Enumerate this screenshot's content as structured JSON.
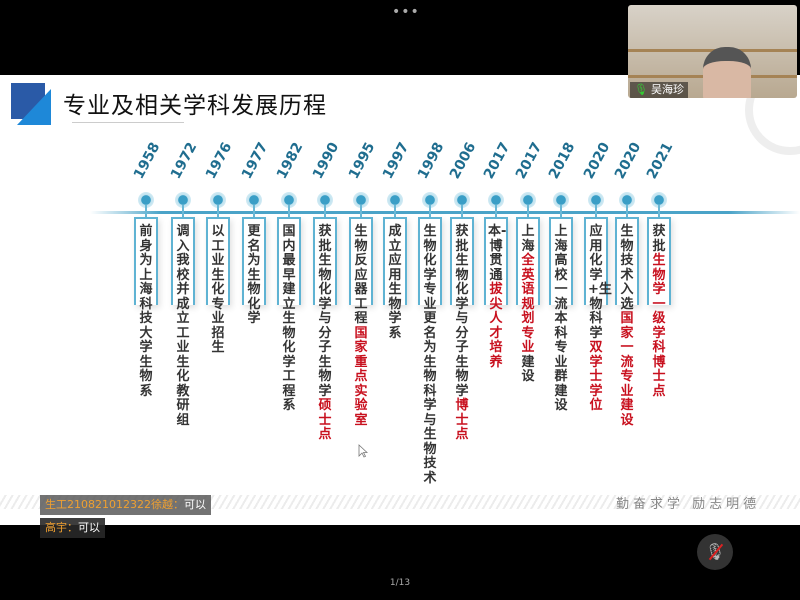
{
  "slide": {
    "title": "专业及相关学科发展历程",
    "motto": "勤奋求学  励志明德",
    "colors": {
      "accent": "#1f6d8f",
      "highlight": "#c8101e",
      "logo": "#2a5aa7"
    },
    "timeline": [
      {
        "year": "1958",
        "text": [
          {
            "t": "前身为上海科技大学生物系"
          }
        ]
      },
      {
        "year": "1972",
        "text": [
          {
            "t": "调入我校并成立工业生化教研组"
          }
        ]
      },
      {
        "year": "1976",
        "text": [
          {
            "t": "以工业生化专业招生"
          }
        ]
      },
      {
        "year": "1977",
        "text": [
          {
            "t": "更名为生物化学"
          }
        ]
      },
      {
        "year": "1982",
        "text": [
          {
            "t": "国内最早建立生物化学工程系"
          }
        ]
      },
      {
        "year": "1990",
        "text": [
          {
            "t": "获批生物化学与分子生物学"
          },
          {
            "t": "硕士点",
            "red": true
          }
        ]
      },
      {
        "year": "1995",
        "text": [
          {
            "t": "生物反应器工程"
          },
          {
            "t": "国家重点实验室",
            "red": true
          }
        ]
      },
      {
        "year": "1997",
        "text": [
          {
            "t": "成立应用生物学系"
          }
        ]
      },
      {
        "year": "1998",
        "text": [
          {
            "t": "生物化学专业更名为生物科学与生物技术"
          }
        ]
      },
      {
        "year": "2006",
        "text": [
          {
            "t": "获批生物化学与分子生物学"
          },
          {
            "t": "博士点",
            "red": true
          }
        ]
      },
      {
        "year": "2017",
        "text": [
          {
            "t": "本-博贯通"
          },
          {
            "t": "拔尖人才培养",
            "red": true
          }
        ]
      },
      {
        "year": "2017",
        "text": [
          {
            "t": "上海"
          },
          {
            "t": "全英语规划专业",
            "red": true
          },
          {
            "t": "建设"
          }
        ]
      },
      {
        "year": "2018",
        "text": [
          {
            "t": "上海高校一流本科专业群建设"
          }
        ]
      },
      {
        "year": "2020",
        "text": [
          {
            "t": "应用化学+生物科学"
          },
          {
            "t": "双学士学位",
            "red": true
          }
        ]
      },
      {
        "year": "2020",
        "text": [
          {
            "t": "生物技术入选"
          },
          {
            "t": "国家一流专业建设",
            "red": true
          }
        ]
      },
      {
        "year": "2021",
        "text": [
          {
            "t": "获批"
          },
          {
            "t": "生物学一级学科博士点",
            "red": true
          }
        ]
      }
    ]
  },
  "video": {
    "participant_name": "吴海珍",
    "mic_icon": "mic-on-icon"
  },
  "chat": [
    {
      "sender": "生工2108210123​22徐越：",
      "message": "可以"
    },
    {
      "sender": "高宇：",
      "message": "可以"
    }
  ],
  "controls": {
    "mute_icon": "mic-muted-icon",
    "more_icon": "more-dots-icon"
  },
  "page_indicator": "1/13"
}
